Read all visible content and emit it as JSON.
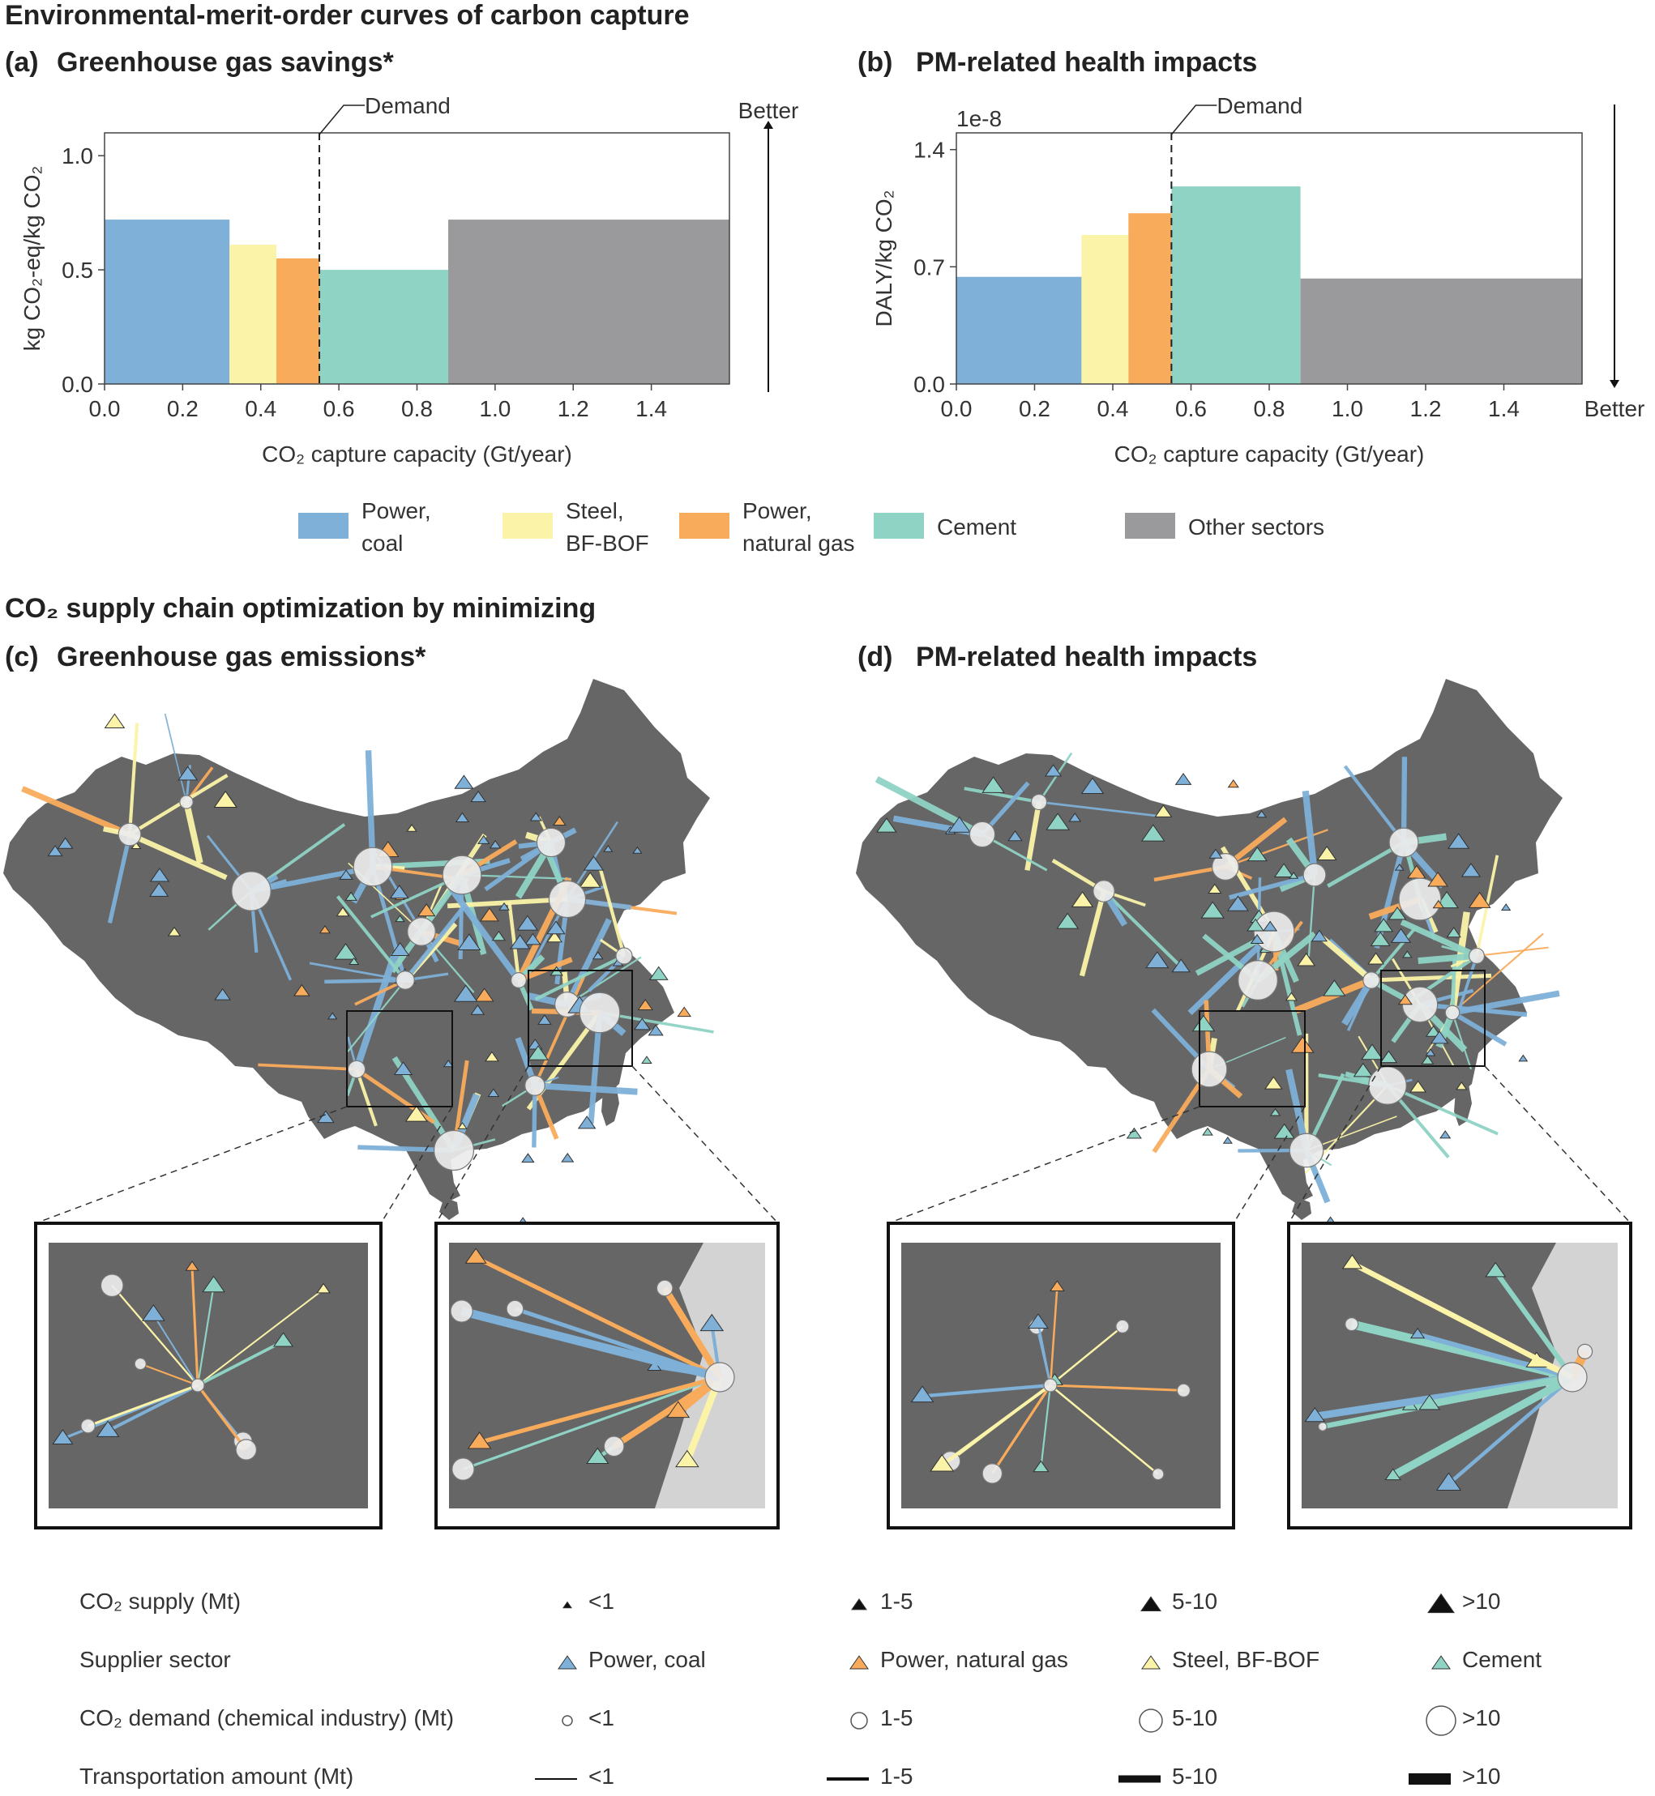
{
  "figure_title_top": "Environmental-merit-order curves of carbon capture",
  "figure_title_mid": "CO₂ supply chain optimization by minimizing",
  "panels": {
    "a": {
      "label": "(a)",
      "title": "Greenhouse gas savings*"
    },
    "b": {
      "label": "(b)",
      "title": "PM-related health impacts"
    },
    "c": {
      "label": "(c)",
      "title": "Greenhouse gas emissions*"
    },
    "d": {
      "label": "(d)",
      "title": "PM-related health impacts"
    }
  },
  "colors": {
    "power_coal": "#7eb0d8",
    "steel": "#fbf3a8",
    "power_gas": "#f9ab5c",
    "cement": "#8fd3c5",
    "other": "#9a9a9c",
    "map_land": "#666666",
    "map_sea": "#d3d3d3"
  },
  "chart_data": [
    {
      "type": "bar",
      "id": "a",
      "title": "Greenhouse gas savings*",
      "xlabel": "CO₂ capture capacity (Gt/year)",
      "ylabel": "kg CO₂-eq/kg CO₂",
      "xlim": [
        0.0,
        1.6
      ],
      "ylim": [
        0.0,
        1.1
      ],
      "xticks": [
        "0.0",
        "0.2",
        "0.4",
        "0.6",
        "0.8",
        "1.0",
        "1.2",
        "1.4"
      ],
      "yticks": [
        "0.0",
        "0.5",
        "1.0"
      ],
      "demand_label": "Demand",
      "demand_x": 0.55,
      "direction_label": "Better",
      "direction": "up",
      "segments": [
        {
          "sector": "Power, coal",
          "x0": 0.0,
          "x1": 0.32,
          "value": 0.72
        },
        {
          "sector": "Steel, BF-BOF",
          "x0": 0.32,
          "x1": 0.44,
          "value": 0.61
        },
        {
          "sector": "Power, natural gas",
          "x0": 0.44,
          "x1": 0.55,
          "value": 0.55
        },
        {
          "sector": "Cement",
          "x0": 0.55,
          "x1": 0.88,
          "value": 0.5
        },
        {
          "sector": "Other sectors",
          "x0": 0.88,
          "x1": 1.6,
          "value": 0.72
        }
      ]
    },
    {
      "type": "bar",
      "id": "b",
      "title": "PM-related health impacts",
      "xlabel": "CO₂ capture capacity (Gt/year)",
      "ylabel": "DALY/kg CO₂",
      "scale_label": "1e-8",
      "xlim": [
        0.0,
        1.6
      ],
      "ylim": [
        0.0,
        1.5
      ],
      "xticks": [
        "0.0",
        "0.2",
        "0.4",
        "0.6",
        "0.8",
        "1.0",
        "1.2",
        "1.4"
      ],
      "yticks": [
        "0.0",
        "0.7",
        "1.4"
      ],
      "demand_label": "Demand",
      "demand_x": 0.55,
      "direction_label": "Better",
      "direction": "down",
      "segments": [
        {
          "sector": "Power, coal",
          "x0": 0.0,
          "x1": 0.32,
          "value": 0.64
        },
        {
          "sector": "Steel, BF-BOF",
          "x0": 0.32,
          "x1": 0.44,
          "value": 0.89
        },
        {
          "sector": "Power, natural gas",
          "x0": 0.44,
          "x1": 0.55,
          "value": 1.02
        },
        {
          "sector": "Cement",
          "x0": 0.55,
          "x1": 0.88,
          "value": 1.18
        },
        {
          "sector": "Other sectors",
          "x0": 0.88,
          "x1": 1.6,
          "value": 0.63
        }
      ]
    }
  ],
  "sector_legend": [
    {
      "key": "power_coal",
      "line1": "Power,",
      "line2": "coal"
    },
    {
      "key": "steel",
      "line1": "Steel,",
      "line2": "BF-BOF"
    },
    {
      "key": "power_gas",
      "line1": "Power,",
      "line2": "natural gas"
    },
    {
      "key": "cement",
      "line1": "Cement",
      "line2": ""
    },
    {
      "key": "other",
      "line1": "Other sectors",
      "line2": ""
    }
  ],
  "bottom_legend": {
    "supply": {
      "label": "CO₂ supply (Mt)",
      "items": [
        "<1",
        "1-5",
        "5-10",
        ">10"
      ]
    },
    "sector": {
      "label": "Supplier sector",
      "items": [
        "Power, coal",
        "Power, natural gas",
        "Steel, BF-BOF",
        "Cement"
      ]
    },
    "demand": {
      "label": "CO₂ demand (chemical industry) (Mt)",
      "items": [
        "<1",
        "1-5",
        "5-10",
        ">10"
      ]
    },
    "transport": {
      "label": "Transportation amount (Mt)",
      "items": [
        "<1",
        "1-5",
        "5-10",
        ">10"
      ]
    }
  }
}
